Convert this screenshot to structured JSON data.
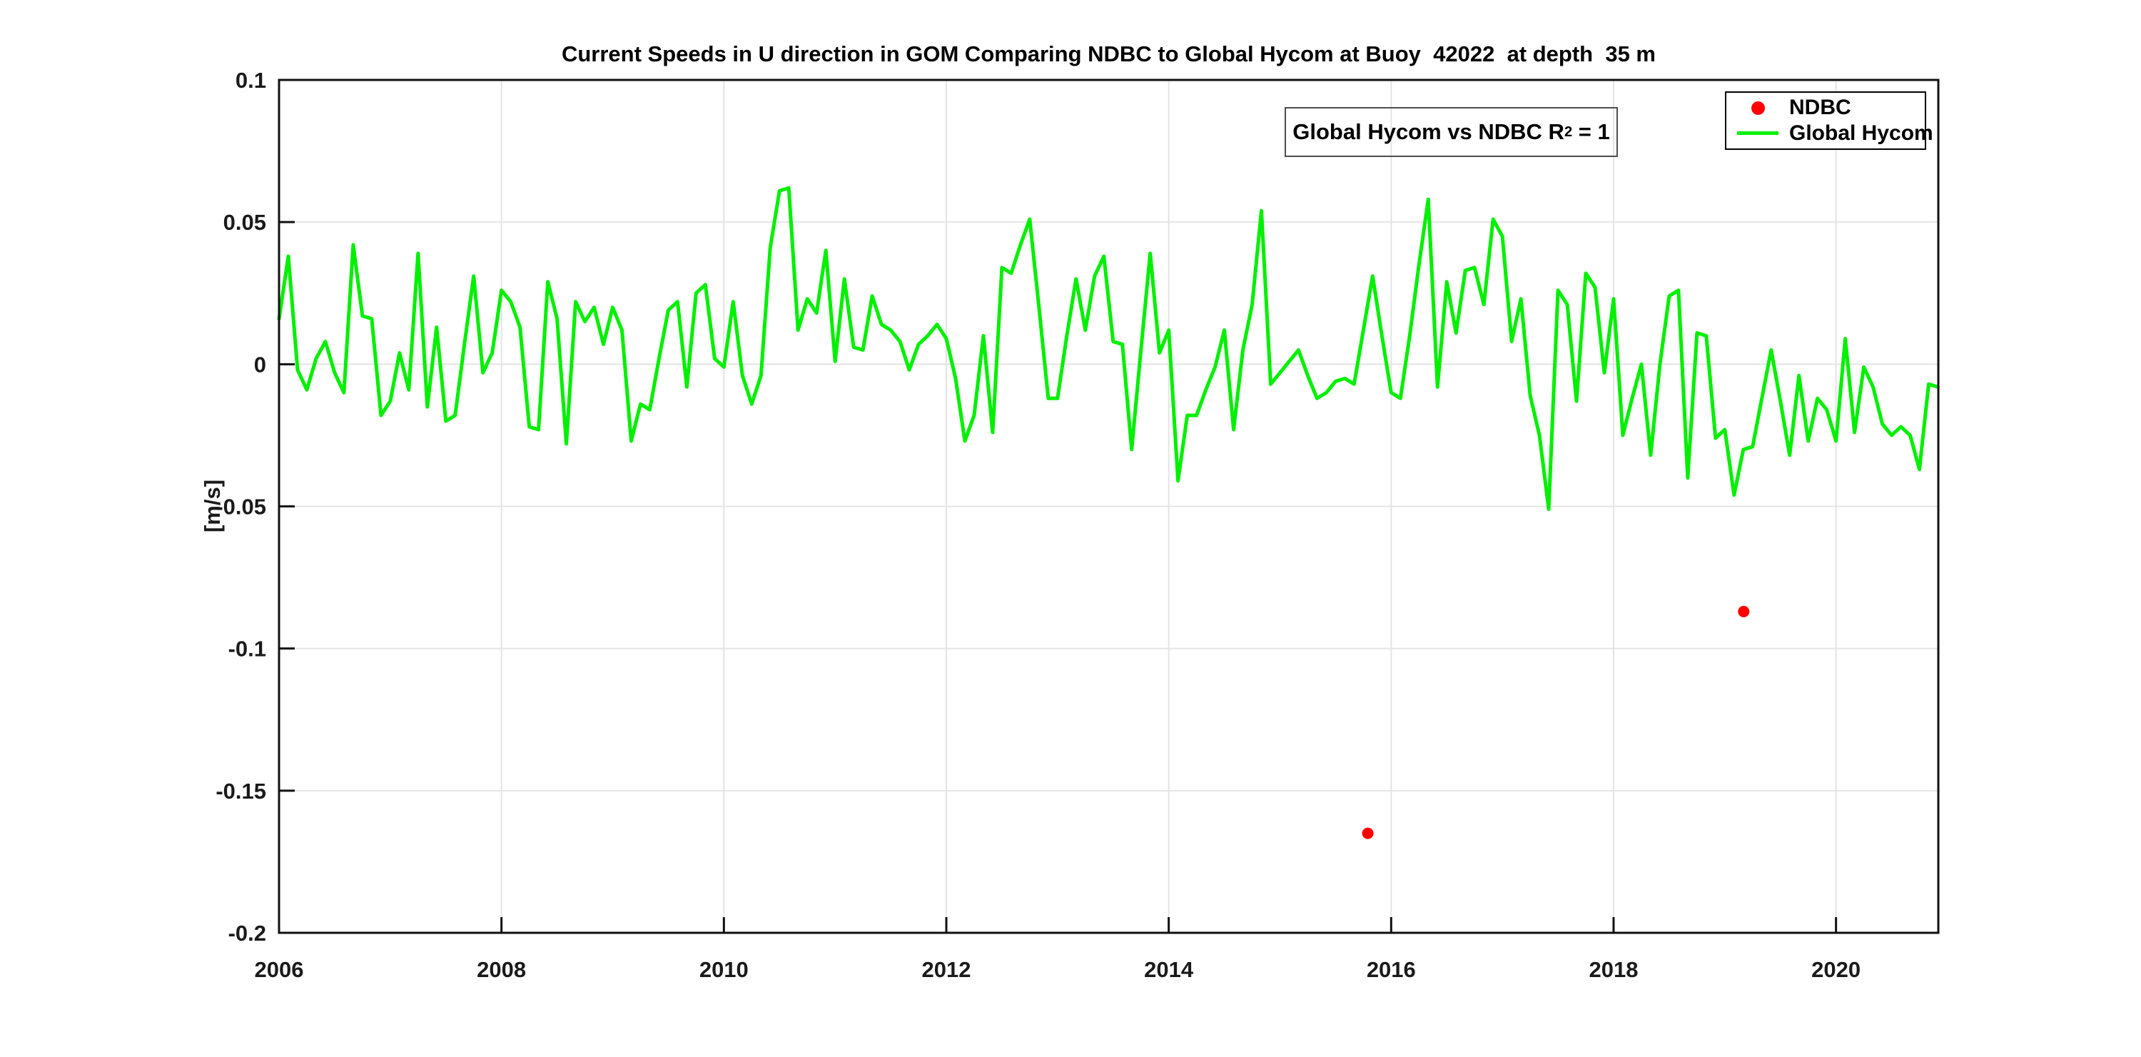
{
  "chart_data": {
    "type": "line",
    "title": "Current Speeds in U direction in GOM Comparing NDBC to Global Hycom at Buoy  42022  at depth  35 m",
    "xlabel": "",
    "ylabel": "[m/s]",
    "xlim": [
      2006,
      2020.92
    ],
    "ylim": [
      -0.2,
      0.1
    ],
    "grid": true,
    "grid_color": "#e4e4e4",
    "axis_color": "#111111",
    "background": "#ffffff",
    "xticks": {
      "values": [
        2006,
        2008,
        2010,
        2012,
        2014,
        2016,
        2018,
        2020
      ],
      "labels": [
        "2006",
        "2008",
        "2010",
        "2012",
        "2014",
        "2016",
        "2018",
        "2020"
      ]
    },
    "yticks": {
      "values": [
        0.1,
        0.05,
        0,
        -0.05,
        -0.1,
        -0.15,
        -0.2
      ],
      "labels": [
        "0.1",
        "0.05",
        "0",
        "-0.05",
        "-0.1",
        "-0.15",
        "-0.2"
      ]
    },
    "legend": {
      "position": "northeast"
    },
    "annotation": {
      "prefix": "Global Hycom vs NDBC R",
      "sup": "2",
      "suffix": " = 1"
    },
    "series": [
      {
        "name": "NDBC",
        "type": "scatter",
        "color": "#ff0000",
        "marker": "filled-circle",
        "points": [
          [
            2015.79,
            -0.165
          ],
          [
            2019.17,
            -0.087
          ]
        ]
      },
      {
        "name": "Global Hycom",
        "type": "line",
        "color": "#00f000",
        "x_start": 2006,
        "x_step_years": 0.08333333,
        "values": [
          0.016,
          0.038,
          -0.002,
          -0.009,
          0.002,
          0.008,
          -0.003,
          -0.01,
          0.042,
          0.017,
          0.016,
          -0.018,
          -0.013,
          0.004,
          -0.009,
          0.039,
          -0.015,
          0.013,
          -0.02,
          -0.018,
          0.007,
          0.031,
          -0.003,
          0.004,
          0.026,
          0.022,
          0.013,
          -0.022,
          -0.023,
          0.029,
          0.016,
          -0.028,
          0.022,
          0.015,
          0.02,
          0.007,
          0.02,
          0.012,
          -0.027,
          -0.014,
          -0.016,
          0.002,
          0.019,
          0.022,
          -0.008,
          0.025,
          0.028,
          0.002,
          -0.001,
          0.022,
          -0.004,
          -0.014,
          -0.004,
          0.041,
          0.061,
          0.062,
          0.012,
          0.023,
          0.018,
          0.04,
          0.001,
          0.03,
          0.006,
          0.005,
          0.024,
          0.014,
          0.012,
          0.008,
          -0.002,
          0.007,
          0.01,
          0.014,
          0.009,
          -0.005,
          -0.027,
          -0.018,
          0.01,
          -0.024,
          0.034,
          0.032,
          0.042,
          0.051,
          0.02,
          -0.012,
          -0.012,
          0.01,
          0.03,
          0.012,
          0.031,
          0.038,
          0.008,
          0.007,
          -0.03,
          0.005,
          0.039,
          0.004,
          0.012,
          -0.041,
          -0.018,
          -0.018,
          -0.009,
          -0.001,
          0.012,
          -0.023,
          0.005,
          0.021,
          0.054,
          -0.007,
          -0.003,
          0.001,
          0.005,
          -0.004,
          -0.012,
          -0.01,
          -0.006,
          -0.005,
          -0.007,
          0.012,
          0.031,
          0.01,
          -0.01,
          -0.012,
          0.01,
          0.035,
          0.058,
          -0.008,
          0.029,
          0.011,
          0.033,
          0.034,
          0.021,
          0.051,
          0.045,
          0.008,
          0.023,
          -0.011,
          -0.025,
          -0.051,
          0.026,
          0.021,
          -0.013,
          0.032,
          0.027,
          -0.003,
          0.023,
          -0.025,
          -0.012,
          0.0,
          -0.032,
          0.0,
          0.024,
          0.026,
          -0.04,
          0.011,
          0.01,
          -0.026,
          -0.023,
          -0.046,
          -0.03,
          -0.029,
          -0.012,
          0.005,
          -0.013,
          -0.032,
          -0.004,
          -0.027,
          -0.012,
          -0.016,
          -0.027,
          0.009,
          -0.024,
          -0.001,
          -0.008,
          -0.021,
          -0.025,
          -0.022,
          -0.025,
          -0.037,
          -0.007,
          -0.008
        ]
      }
    ]
  }
}
